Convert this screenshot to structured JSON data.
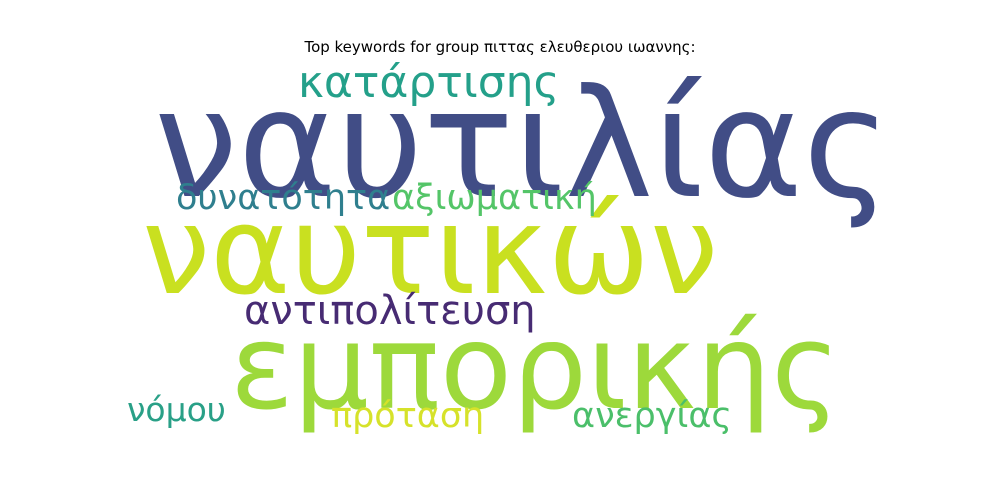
{
  "title": "Top keywords for group πιττας ελευθεριου ιωαννης:",
  "words": [
    {
      "id": "w-nautilias",
      "text": "ναυτιλίας",
      "color": "#414d86"
    },
    {
      "id": "w-nautikon",
      "text": "ναυτικών",
      "color": "#c9e020"
    },
    {
      "id": "w-emporikis",
      "text": "εμπορικής",
      "color": "#9dd93b"
    },
    {
      "id": "w-katartisis",
      "text": "κατάρτισης",
      "color": "#24a08a"
    },
    {
      "id": "w-dynatotita",
      "text": "δυνατότητα",
      "color": "#2f7f8e"
    },
    {
      "id": "w-axiomatiki",
      "text": "αξιωματική",
      "color": "#54c568"
    },
    {
      "id": "w-antipoliteusi",
      "text": "αντιπολίτευση",
      "color": "#472b73"
    },
    {
      "id": "w-nomou",
      "text": "νόμου",
      "color": "#29a087"
    },
    {
      "id": "w-protasi",
      "text": "πρόταση",
      "color": "#d6e22a"
    },
    {
      "id": "w-anergias",
      "text": "ανεργίας",
      "color": "#4bbf6a"
    }
  ]
}
